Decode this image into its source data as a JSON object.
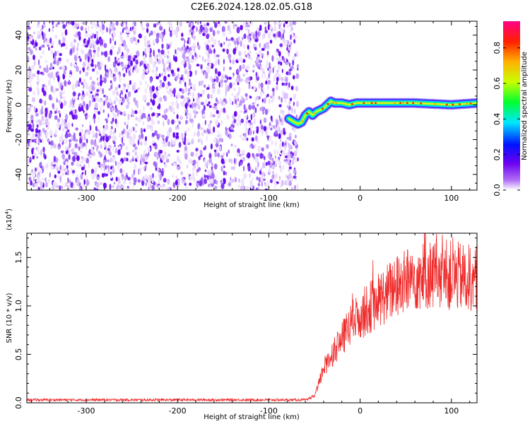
{
  "title": "C2E6.2024.128.02.05.G18",
  "colors": {
    "noise": "#7a1ff0",
    "snr_line": "#ee2a2a",
    "frame": "#000000"
  },
  "chart_data": [
    {
      "type": "heatmap",
      "name": "spectrogram",
      "xlabel": "Height of straight line (km)",
      "ylabel": "Frequency (Hz)",
      "xlim": [
        -365,
        128
      ],
      "ylim": [
        -49,
        48
      ],
      "xticks": [
        -300,
        -200,
        -100,
        0,
        100
      ],
      "yticks": [
        -40,
        -20,
        0,
        20,
        40
      ],
      "noise_region_x": [
        -365,
        -68
      ],
      "signal_track": {
        "x": [
          -78,
          -72,
          -68,
          -64,
          -60,
          -56,
          -52,
          -48,
          -44,
          -40,
          -36,
          -32,
          -28,
          -20,
          -12,
          -4,
          0,
          20,
          60,
          100,
          128
        ],
        "y": [
          -8,
          -10,
          -11,
          -10,
          -6,
          -4,
          -6,
          -4,
          -3,
          -2,
          0,
          2,
          1,
          1,
          0,
          1,
          1,
          1,
          1,
          0,
          1
        ]
      },
      "colorbar": {
        "label": "Normalized spectral amplitude",
        "range": [
          0,
          0.95
        ],
        "ticks": [
          "0.0",
          "0.2",
          "0.4",
          "0.6",
          "0.8"
        ],
        "tick_values": [
          0.0,
          0.2,
          0.4,
          0.6,
          0.8
        ]
      }
    },
    {
      "type": "line",
      "name": "snr",
      "xlabel": "Height of straight line (km)",
      "ylabel": "SNR (10 * v/v)",
      "scale_label": "(x10",
      "scale_exp": "4",
      "scale_close": ")",
      "xlim": [
        -365,
        128
      ],
      "ylim": [
        0,
        17500
      ],
      "xticks": [
        -300,
        -200,
        -100,
        0,
        100
      ],
      "yticks": [
        0,
        5000,
        10000,
        15000
      ],
      "ytick_labels": [
        "0.0",
        "0.5",
        "1.0",
        "1.5"
      ],
      "envelope": {
        "x": [
          -365,
          -60,
          -50,
          -45,
          -40,
          -30,
          -20,
          -10,
          0,
          10,
          20,
          40,
          60,
          80,
          100,
          128
        ],
        "y": [
          250,
          250,
          700,
          2000,
          3600,
          5200,
          6500,
          8200,
          9000,
          9800,
          10600,
          12000,
          13000,
          13300,
          13100,
          12700
        ]
      }
    }
  ]
}
